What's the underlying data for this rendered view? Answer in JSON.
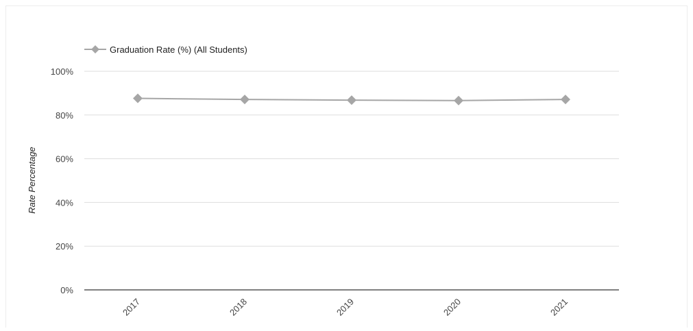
{
  "chart_data": {
    "type": "line",
    "categories": [
      "2017",
      "2018",
      "2019",
      "2020",
      "2021"
    ],
    "series": [
      {
        "name": "Graduation Rate (%) (All Students)",
        "values": [
          87.6,
          87.1,
          86.8,
          86.6,
          87.1
        ],
        "color": "#a6a6a6",
        "marker": "diamond"
      }
    ],
    "ylabel": "Rate Percentage",
    "xlabel": "",
    "title": "",
    "ylim": [
      0,
      100
    ],
    "yticks": [
      0,
      20,
      40,
      60,
      80,
      100
    ],
    "ytick_labels": [
      "0%",
      "20%",
      "40%",
      "60%",
      "80%",
      "100%"
    ],
    "grid": true,
    "gridline_color": "#dddddd",
    "axis_color": "#333333",
    "legend_position": "top-left"
  }
}
